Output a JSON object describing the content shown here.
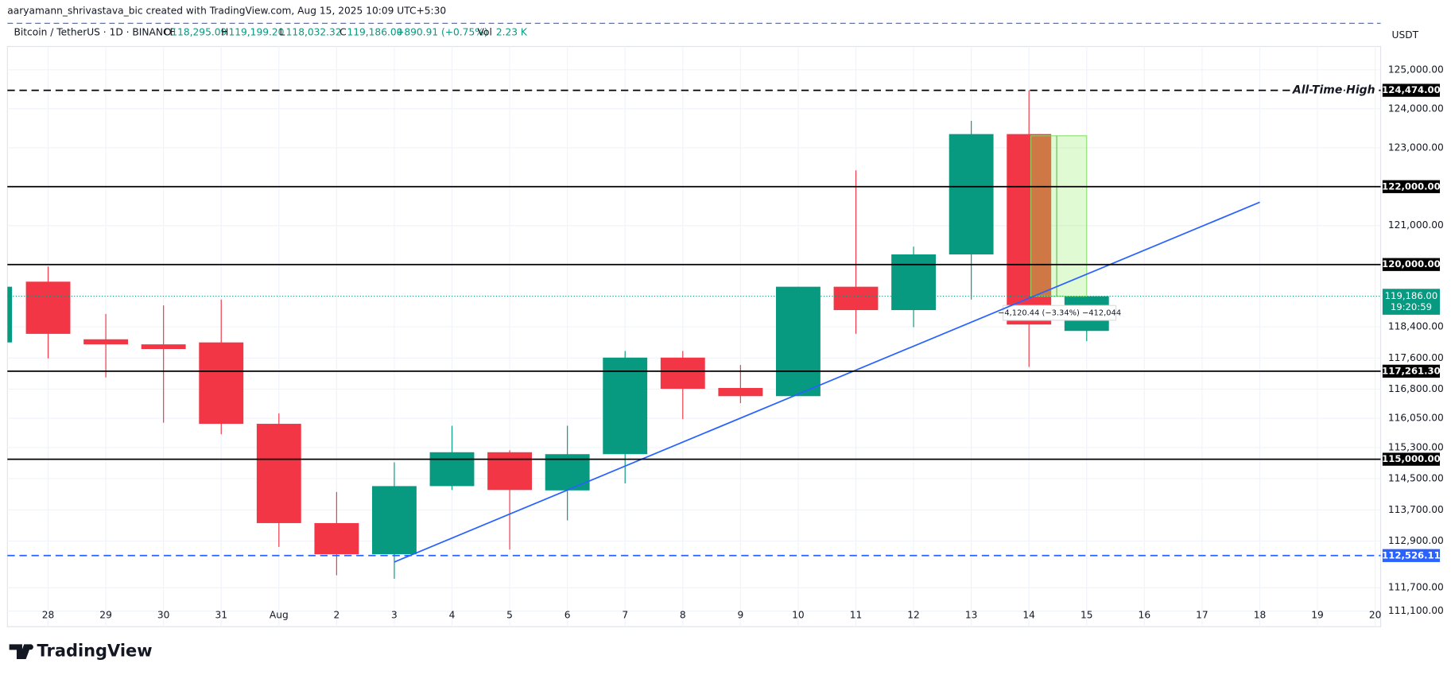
{
  "header": {
    "credit": "aaryamann_shrivastava_bic created with TradingView.com, Aug 15, 2025 10:09 UTC+5:30",
    "symbol": "Bitcoin / TetherUS · 1D · BINANCE",
    "o_key": "O",
    "o": "118,295.09",
    "h_key": "H",
    "h": "119,199.20",
    "l_key": "L",
    "l": "118,032.32",
    "c_key": "C",
    "c": "119,186.00",
    "change": "+890.91 (+0.75%)",
    "vol_key": "Vol",
    "vol": "2.23 K",
    "currency": "USDT",
    "logo": "TradingView"
  },
  "chart_data": {
    "type": "candlestick",
    "categories": [
      "28",
      "29",
      "30",
      "31",
      "Aug",
      "2",
      "3",
      "4",
      "5",
      "6",
      "7",
      "8",
      "9",
      "10",
      "11",
      "12",
      "13",
      "14",
      "15",
      "16",
      "17",
      "18",
      "19",
      "20"
    ],
    "open": [
      119560,
      118080,
      117950,
      118000,
      115910,
      113360,
      112560,
      114310,
      115180,
      114200,
      115130,
      117610,
      116830,
      116620,
      119430,
      118830,
      120260,
      123350,
      118295.09,
      null,
      null,
      null,
      null,
      null
    ],
    "high": [
      119950,
      118730,
      118950,
      119100,
      116180,
      114160,
      114920,
      115860,
      115230,
      115860,
      117780,
      117780,
      117420,
      119430,
      122420,
      120460,
      123690,
      124474,
      119199.2,
      null,
      null,
      null,
      null,
      null
    ],
    "low": [
      117590,
      117100,
      115940,
      115640,
      112750,
      112020,
      111930,
      114210,
      112680,
      113430,
      114380,
      116030,
      116440,
      116620,
      118220,
      118390,
      119100,
      117370,
      118032.32,
      null,
      null,
      null,
      null,
      null
    ],
    "close": [
      118220,
      117950,
      117830,
      115910,
      113360,
      112560,
      114310,
      115180,
      114210,
      115130,
      117610,
      116810,
      116620,
      119430,
      118830,
      120260,
      123350,
      118460,
      119186,
      null,
      null,
      null,
      null,
      null
    ],
    "up_color": "#089981",
    "down_color": "#f23645",
    "ylim": [
      110700,
      125600
    ],
    "yticks": [
      {
        "value": 125000,
        "label": "125,000.00"
      },
      {
        "value": 124000,
        "label": "124,000.00"
      },
      {
        "value": 123000,
        "label": "123,000.00"
      },
      {
        "value": 121000,
        "label": "121,000.00"
      },
      {
        "value": 118400,
        "label": "118,400.00"
      },
      {
        "value": 117600,
        "label": "117,600.00"
      },
      {
        "value": 116800,
        "label": "116,800.00"
      },
      {
        "value": 116050,
        "label": "116,050.00"
      },
      {
        "value": 115300,
        "label": "115,300.00"
      },
      {
        "value": 114500,
        "label": "114,500.00"
      },
      {
        "value": 113700,
        "label": "113,700.00"
      },
      {
        "value": 112900,
        "label": "112,900.00"
      },
      {
        "value": 111700,
        "label": "111,700.00"
      },
      {
        "value": 111100,
        "label": "111,100.00"
      }
    ],
    "grid": true,
    "levels": [
      {
        "value": 124474,
        "label": "124,474.00",
        "color": "#000000",
        "dashed": true
      },
      {
        "value": 122000,
        "label": "122,000.00",
        "color": "#000000",
        "dashed": false
      },
      {
        "value": 120000,
        "label": "120,000.00",
        "color": "#000000",
        "dashed": false
      },
      {
        "value": 117261.3,
        "label": "117,261.30",
        "color": "#000000",
        "dashed": false
      },
      {
        "value": 115000,
        "label": "115,000.00",
        "color": "#000000",
        "dashed": false
      },
      {
        "value": 112526.11,
        "label": "112,526.11",
        "color": "#2962ff",
        "dashed": true
      }
    ],
    "last_price": {
      "value": 119186,
      "label": "119,186.00",
      "countdown": "19:20:59",
      "color": "#089981"
    },
    "annotation": "All-Time High",
    "trendline": {
      "x": [
        "3",
        "18"
      ],
      "values": [
        112360,
        121600
      ],
      "color": "#2962ff"
    },
    "measure": {
      "start": 123306.44,
      "end": 119186,
      "label": "−4,120.44 (−3.34%) −412,044"
    }
  }
}
